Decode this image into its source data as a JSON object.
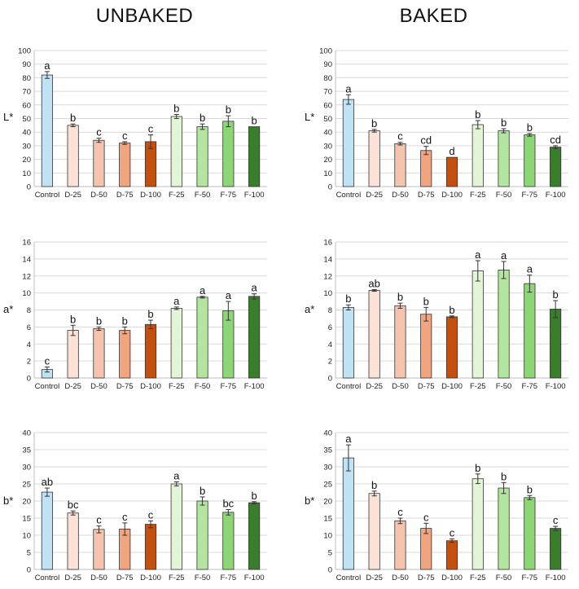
{
  "titles": {
    "left": "UNBAKED",
    "right": "BAKED"
  },
  "colors": {
    "Control": "#bfe3f5",
    "D-25": "#fbe1d6",
    "D-50": "#f6c4ad",
    "D-75": "#f0a47f",
    "D-100": "#c4500f",
    "F-25": "#e2f5d7",
    "F-50": "#b3e5a1",
    "F-75": "#8ed577",
    "F-100": "#3a7d2c"
  },
  "chart_data": [
    {
      "type": "bar",
      "panel": "unbaked-L",
      "ylabel": "L*",
      "ylim": [
        0,
        100
      ],
      "ystep": 10,
      "categories": [
        "Control",
        "D-25",
        "D-50",
        "D-75",
        "D-100",
        "F-25",
        "F-50",
        "F-75",
        "F-100"
      ],
      "values": [
        82,
        45,
        34,
        32,
        33,
        51.5,
        44,
        48,
        44
      ],
      "errors": [
        2.5,
        1,
        1.5,
        1,
        5,
        1.5,
        2,
        4,
        0
      ],
      "letters": [
        "a",
        "b",
        "c",
        "c",
        "c",
        "b",
        "b",
        "b",
        "b"
      ]
    },
    {
      "type": "bar",
      "panel": "baked-L",
      "ylabel": "L*",
      "ylim": [
        0,
        100
      ],
      "ystep": 10,
      "categories": [
        "Control",
        "D-25",
        "D-50",
        "D-75",
        "D-100",
        "F-25",
        "F-50",
        "F-75",
        "F-100"
      ],
      "values": [
        64,
        41,
        31.5,
        26.5,
        21.5,
        45.5,
        41,
        38,
        29
      ],
      "errors": [
        3.5,
        1,
        1,
        3,
        0,
        3,
        1.5,
        1,
        1
      ],
      "letters": [
        "a",
        "b",
        "c",
        "cd",
        "d",
        "b",
        "b",
        "b",
        "cd"
      ]
    },
    {
      "type": "bar",
      "panel": "unbaked-a",
      "ylabel": "a*",
      "ylim": [
        0,
        16
      ],
      "ystep": 2,
      "categories": [
        "Control",
        "D-25",
        "D-50",
        "D-75",
        "D-100",
        "F-25",
        "F-50",
        "F-75",
        "F-100"
      ],
      "values": [
        1,
        5.6,
        5.8,
        5.6,
        6.3,
        8.2,
        9.5,
        7.9,
        9.6
      ],
      "errors": [
        0.3,
        0.6,
        0.2,
        0.4,
        0.5,
        0.15,
        0.1,
        1.1,
        0.3
      ],
      "letters": [
        "c",
        "b",
        "b",
        "b",
        "b",
        "a",
        "a",
        "a",
        "a"
      ]
    },
    {
      "type": "bar",
      "panel": "baked-a",
      "ylabel": "a*",
      "ylim": [
        0,
        16
      ],
      "ystep": 2,
      "categories": [
        "Control",
        "D-25",
        "D-50",
        "D-75",
        "D-100",
        "F-25",
        "F-50",
        "F-75",
        "F-100"
      ],
      "values": [
        8.3,
        10.3,
        8.5,
        7.5,
        7.2,
        12.6,
        12.7,
        11.1,
        8.1
      ],
      "errors": [
        0.3,
        0.1,
        0.3,
        0.8,
        0.1,
        1.2,
        1.0,
        1.0,
        1.0
      ],
      "letters": [
        "b",
        "ab",
        "b",
        "b",
        "b",
        "a",
        "a",
        "a",
        "b"
      ]
    },
    {
      "type": "bar",
      "panel": "unbaked-b",
      "ylabel": "b*",
      "ylim": [
        0,
        40
      ],
      "ystep": 5,
      "categories": [
        "Control",
        "D-25",
        "D-50",
        "D-75",
        "D-100",
        "F-25",
        "F-50",
        "F-75",
        "F-100"
      ],
      "values": [
        22.6,
        16.5,
        11.7,
        11.8,
        13.2,
        25,
        20,
        16.7,
        19.5
      ],
      "errors": [
        1.2,
        0.6,
        1.0,
        1.8,
        1.0,
        0.6,
        1.2,
        0.8,
        0.3
      ],
      "letters": [
        "ab",
        "bc",
        "c",
        "c",
        "c",
        "a",
        "b",
        "bc",
        "b"
      ]
    },
    {
      "type": "bar",
      "panel": "baked-b",
      "ylabel": "b*",
      "ylim": [
        0,
        40
      ],
      "ystep": 5,
      "categories": [
        "Control",
        "D-25",
        "D-50",
        "D-75",
        "D-100",
        "F-25",
        "F-50",
        "F-75",
        "F-100"
      ],
      "values": [
        32.6,
        22.2,
        14.2,
        12,
        8.4,
        26.5,
        23.8,
        21,
        12
      ],
      "errors": [
        3.8,
        0.7,
        0.8,
        1.5,
        0.5,
        1.4,
        1.6,
        0.6,
        0.6
      ],
      "letters": [
        "a",
        "b",
        "c",
        "c",
        "c",
        "b",
        "b",
        "b",
        "c"
      ]
    }
  ]
}
